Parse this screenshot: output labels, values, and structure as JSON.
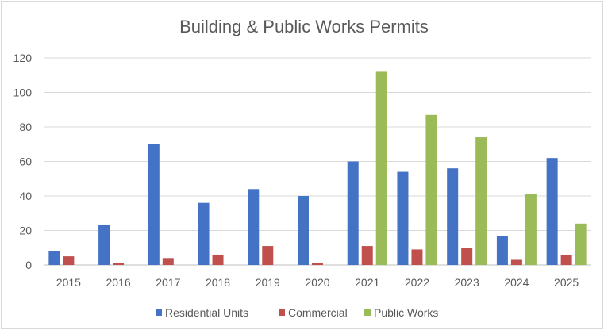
{
  "chart_data": {
    "type": "bar",
    "title": "Building & Public Works Permits",
    "xlabel": "",
    "ylabel": "",
    "ylim": [
      0,
      120
    ],
    "yticks": [
      0,
      20,
      40,
      60,
      80,
      100,
      120
    ],
    "grid": true,
    "legend_position": "bottom",
    "categories": [
      "2015",
      "2016",
      "2017",
      "2018",
      "2019",
      "2020",
      "2021",
      "2022",
      "2023",
      "2024",
      "2025"
    ],
    "series": [
      {
        "name": "Residential Units",
        "color": "#4472c4",
        "values": [
          8,
          23,
          70,
          36,
          44,
          40,
          60,
          54,
          56,
          17,
          62
        ]
      },
      {
        "name": "Commercial",
        "color": "#c0504d",
        "values": [
          5,
          1,
          4,
          6,
          11,
          1,
          11,
          9,
          10,
          3,
          6
        ]
      },
      {
        "name": "Public Works",
        "color": "#9bbb59",
        "values": [
          0,
          0,
          0,
          0,
          0,
          0,
          112,
          87,
          74,
          41,
          24
        ]
      }
    ]
  }
}
